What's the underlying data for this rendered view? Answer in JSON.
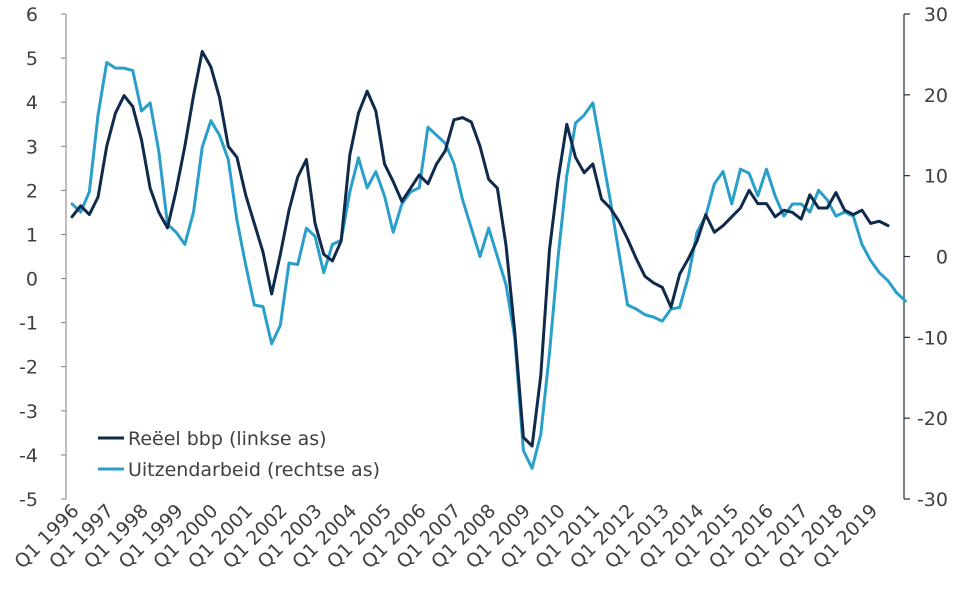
{
  "chart_data": {
    "type": "line",
    "title": "",
    "xlabel": "",
    "ylabel_left": "",
    "ylabel_right": "",
    "x_tick_labels": [
      "Q1 1996",
      "Q1 1997",
      "Q1 1998",
      "Q1 1999",
      "Q1 2000",
      "Q1 2001",
      "Q1 2002",
      "Q1 2003",
      "Q1 2004",
      "Q1 2005",
      "Q1 2006",
      "Q1 2007",
      "Q1 2008",
      "Q1 2009",
      "Q1 2010",
      "Q1 2011",
      "Q1 2012",
      "Q1 2013",
      "Q1 2014",
      "Q1 2015",
      "Q1 2016",
      "Q1 2017",
      "Q1 2018",
      "Q1 2019"
    ],
    "left_axis": {
      "ylim": [
        -5,
        6
      ],
      "ticks": [
        "6",
        "5",
        "4",
        "3",
        "2",
        "1",
        "0",
        "-1",
        "-2",
        "-3",
        "-4",
        "-5"
      ]
    },
    "right_axis": {
      "ylim": [
        -30,
        30
      ],
      "ticks": [
        "30",
        "20",
        "10",
        "0",
        "-10",
        "-20",
        "-30"
      ]
    },
    "grid": false,
    "legend_position": "bottom-left",
    "series": [
      {
        "name": "Reëel bbp (linkse as)",
        "axis": "left",
        "color": "#0f2a4a",
        "start": "Q1 1996",
        "values": [
          1.4,
          1.65,
          1.45,
          1.85,
          3.0,
          3.75,
          4.15,
          3.9,
          3.15,
          2.05,
          1.5,
          1.15,
          2.0,
          3.0,
          4.15,
          5.15,
          4.8,
          4.1,
          3.0,
          2.75,
          1.9,
          1.25,
          0.6,
          -0.35,
          0.55,
          1.55,
          2.3,
          2.7,
          1.25,
          0.55,
          0.4,
          0.85,
          2.8,
          3.75,
          4.25,
          3.8,
          2.6,
          2.2,
          1.75,
          2.05,
          2.35,
          2.15,
          2.6,
          2.9,
          3.6,
          3.65,
          3.55,
          3.0,
          2.25,
          2.05,
          0.75,
          -1.2,
          -3.6,
          -3.8,
          -2.2,
          0.65,
          2.25,
          3.5,
          2.75,
          2.4,
          2.6,
          1.8,
          1.6,
          1.3,
          0.9,
          0.45,
          0.05,
          -0.1,
          -0.2,
          -0.65,
          0.1,
          0.45,
          0.85,
          1.45,
          1.05,
          1.2,
          1.4,
          1.6,
          2.0,
          1.7,
          1.7,
          1.4,
          1.55,
          1.5,
          1.35,
          1.9,
          1.6,
          1.6,
          1.95,
          1.55,
          1.45,
          1.55,
          1.25,
          1.3,
          1.2
        ]
      },
      {
        "name": "Uitzendarbeid (rechtse as)",
        "axis": "right",
        "color": "#2a9fc9",
        "start": "Q1 1996",
        "values": [
          6.5,
          5.5,
          8.0,
          17.5,
          24.0,
          23.3,
          23.3,
          23.0,
          18.0,
          19.0,
          13.0,
          4.0,
          3.0,
          1.5,
          5.5,
          13.5,
          16.8,
          15.0,
          12.0,
          4.5,
          -1.0,
          -6.0,
          -6.2,
          -10.8,
          -8.5,
          -0.8,
          -1.0,
          3.5,
          2.5,
          -2.0,
          1.5,
          2.0,
          8.0,
          12.2,
          8.5,
          10.5,
          7.5,
          3.0,
          6.5,
          8.0,
          8.5,
          16.0,
          15.0,
          14.0,
          11.5,
          7.0,
          3.5,
          0.0,
          3.5,
          0.0,
          -3.5,
          -10.0,
          -24.0,
          -26.2,
          -22.0,
          -12.0,
          0.0,
          10.0,
          16.5,
          17.5,
          19.0,
          13.0,
          7.0,
          0.5,
          -6.0,
          -6.5,
          -7.2,
          -7.5,
          -8.0,
          -6.5,
          -6.3,
          -2.5,
          3.0,
          5.0,
          9.0,
          10.5,
          6.5,
          10.8,
          10.3,
          7.5,
          10.8,
          7.5,
          5.0,
          6.5,
          6.5,
          5.5,
          8.2,
          7.0,
          5.0,
          5.5,
          5.0,
          1.5,
          -0.5,
          -2.0,
          -3.0,
          -4.5,
          -5.5
        ]
      }
    ]
  }
}
